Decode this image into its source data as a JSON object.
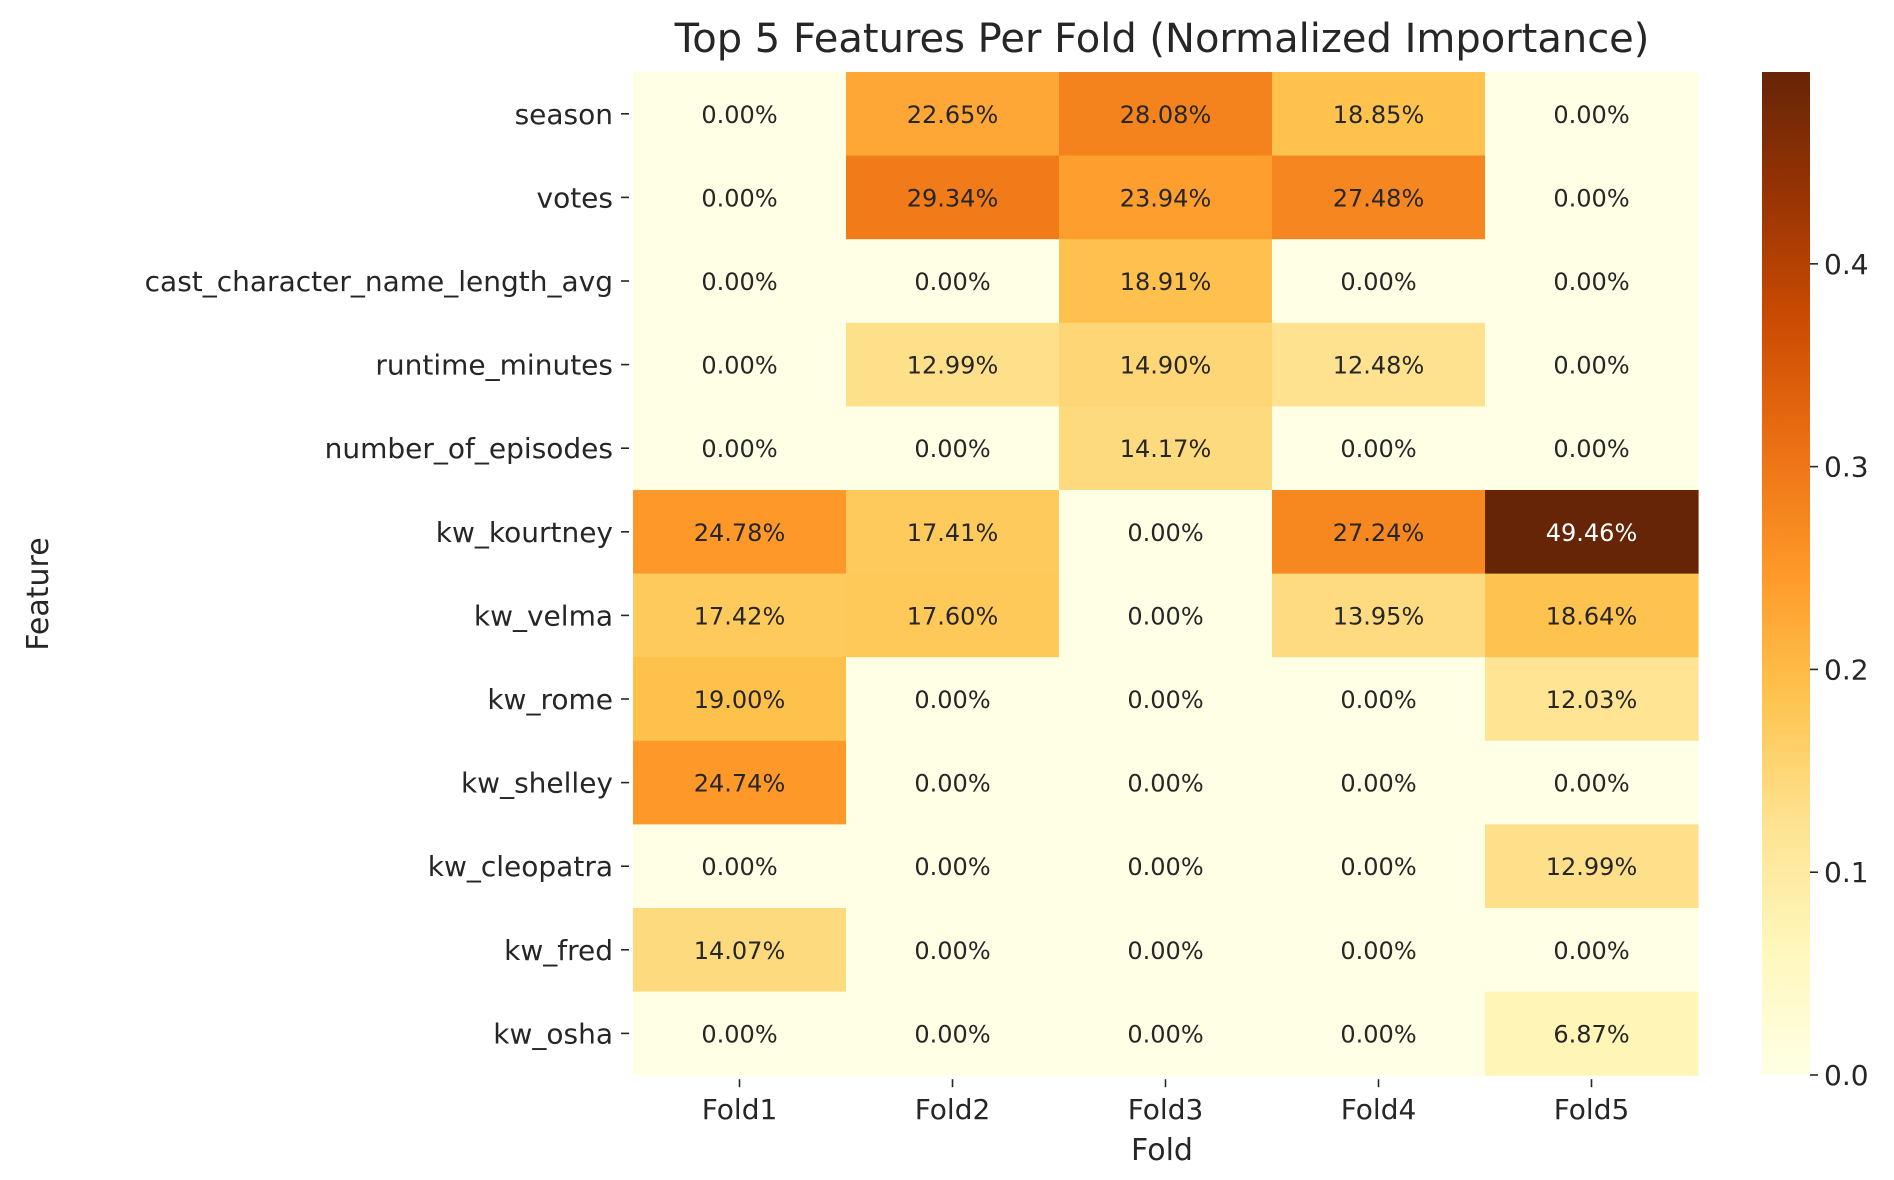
{
  "chart_data": {
    "type": "heatmap",
    "title": "Top 5 Features Per Fold (Normalized Importance)",
    "xlabel": "Fold",
    "ylabel": "Feature",
    "columns": [
      "Fold1",
      "Fold2",
      "Fold3",
      "Fold4",
      "Fold5"
    ],
    "rows": [
      "season",
      "votes",
      "cast_character_name_length_avg",
      "runtime_minutes",
      "number_of_episodes",
      "kw_kourtney",
      "kw_velma",
      "kw_rome",
      "kw_shelley",
      "kw_cleopatra",
      "kw_fred",
      "kw_osha"
    ],
    "values": [
      [
        0.0,
        0.2265,
        0.2808,
        0.1885,
        0.0
      ],
      [
        0.0,
        0.2934,
        0.2394,
        0.2748,
        0.0
      ],
      [
        0.0,
        0.0,
        0.1891,
        0.0,
        0.0
      ],
      [
        0.0,
        0.1299,
        0.149,
        0.1248,
        0.0
      ],
      [
        0.0,
        0.0,
        0.1417,
        0.0,
        0.0
      ],
      [
        0.2478,
        0.1741,
        0.0,
        0.2724,
        0.4946
      ],
      [
        0.1742,
        0.176,
        0.0,
        0.1395,
        0.1864
      ],
      [
        0.19,
        0.0,
        0.0,
        0.0,
        0.1203
      ],
      [
        0.2474,
        0.0,
        0.0,
        0.0,
        0.0
      ],
      [
        0.0,
        0.0,
        0.0,
        0.0,
        0.1299
      ],
      [
        0.1407,
        0.0,
        0.0,
        0.0,
        0.0
      ],
      [
        0.0,
        0.0,
        0.0,
        0.0,
        0.0687
      ]
    ],
    "annotations": [
      [
        "0.00%",
        "22.65%",
        "28.08%",
        "18.85%",
        "0.00%"
      ],
      [
        "0.00%",
        "29.34%",
        "23.94%",
        "27.48%",
        "0.00%"
      ],
      [
        "0.00%",
        "0.00%",
        "18.91%",
        "0.00%",
        "0.00%"
      ],
      [
        "0.00%",
        "12.99%",
        "14.90%",
        "12.48%",
        "0.00%"
      ],
      [
        "0.00%",
        "0.00%",
        "14.17%",
        "0.00%",
        "0.00%"
      ],
      [
        "24.78%",
        "17.41%",
        "0.00%",
        "27.24%",
        "49.46%"
      ],
      [
        "17.42%",
        "17.60%",
        "0.00%",
        "13.95%",
        "18.64%"
      ],
      [
        "19.00%",
        "0.00%",
        "0.00%",
        "0.00%",
        "12.03%"
      ],
      [
        "24.74%",
        "0.00%",
        "0.00%",
        "0.00%",
        "0.00%"
      ],
      [
        "0.00%",
        "0.00%",
        "0.00%",
        "0.00%",
        "12.99%"
      ],
      [
        "14.07%",
        "0.00%",
        "0.00%",
        "0.00%",
        "0.00%"
      ],
      [
        "0.00%",
        "0.00%",
        "0.00%",
        "0.00%",
        "6.87%"
      ]
    ],
    "colormap": "YlOrBr",
    "colormap_stops": [
      "#ffffe5",
      "#fff7bc",
      "#fee391",
      "#fec44f",
      "#fe9929",
      "#ec7014",
      "#cc4c02",
      "#993404",
      "#662506"
    ],
    "colorbar": {
      "range": [
        0.0,
        0.4946
      ],
      "ticks": [
        0.0,
        0.1,
        0.2,
        0.3,
        0.4
      ],
      "tick_labels": [
        "0.0",
        "0.1",
        "0.2",
        "0.3",
        "0.4"
      ]
    }
  }
}
